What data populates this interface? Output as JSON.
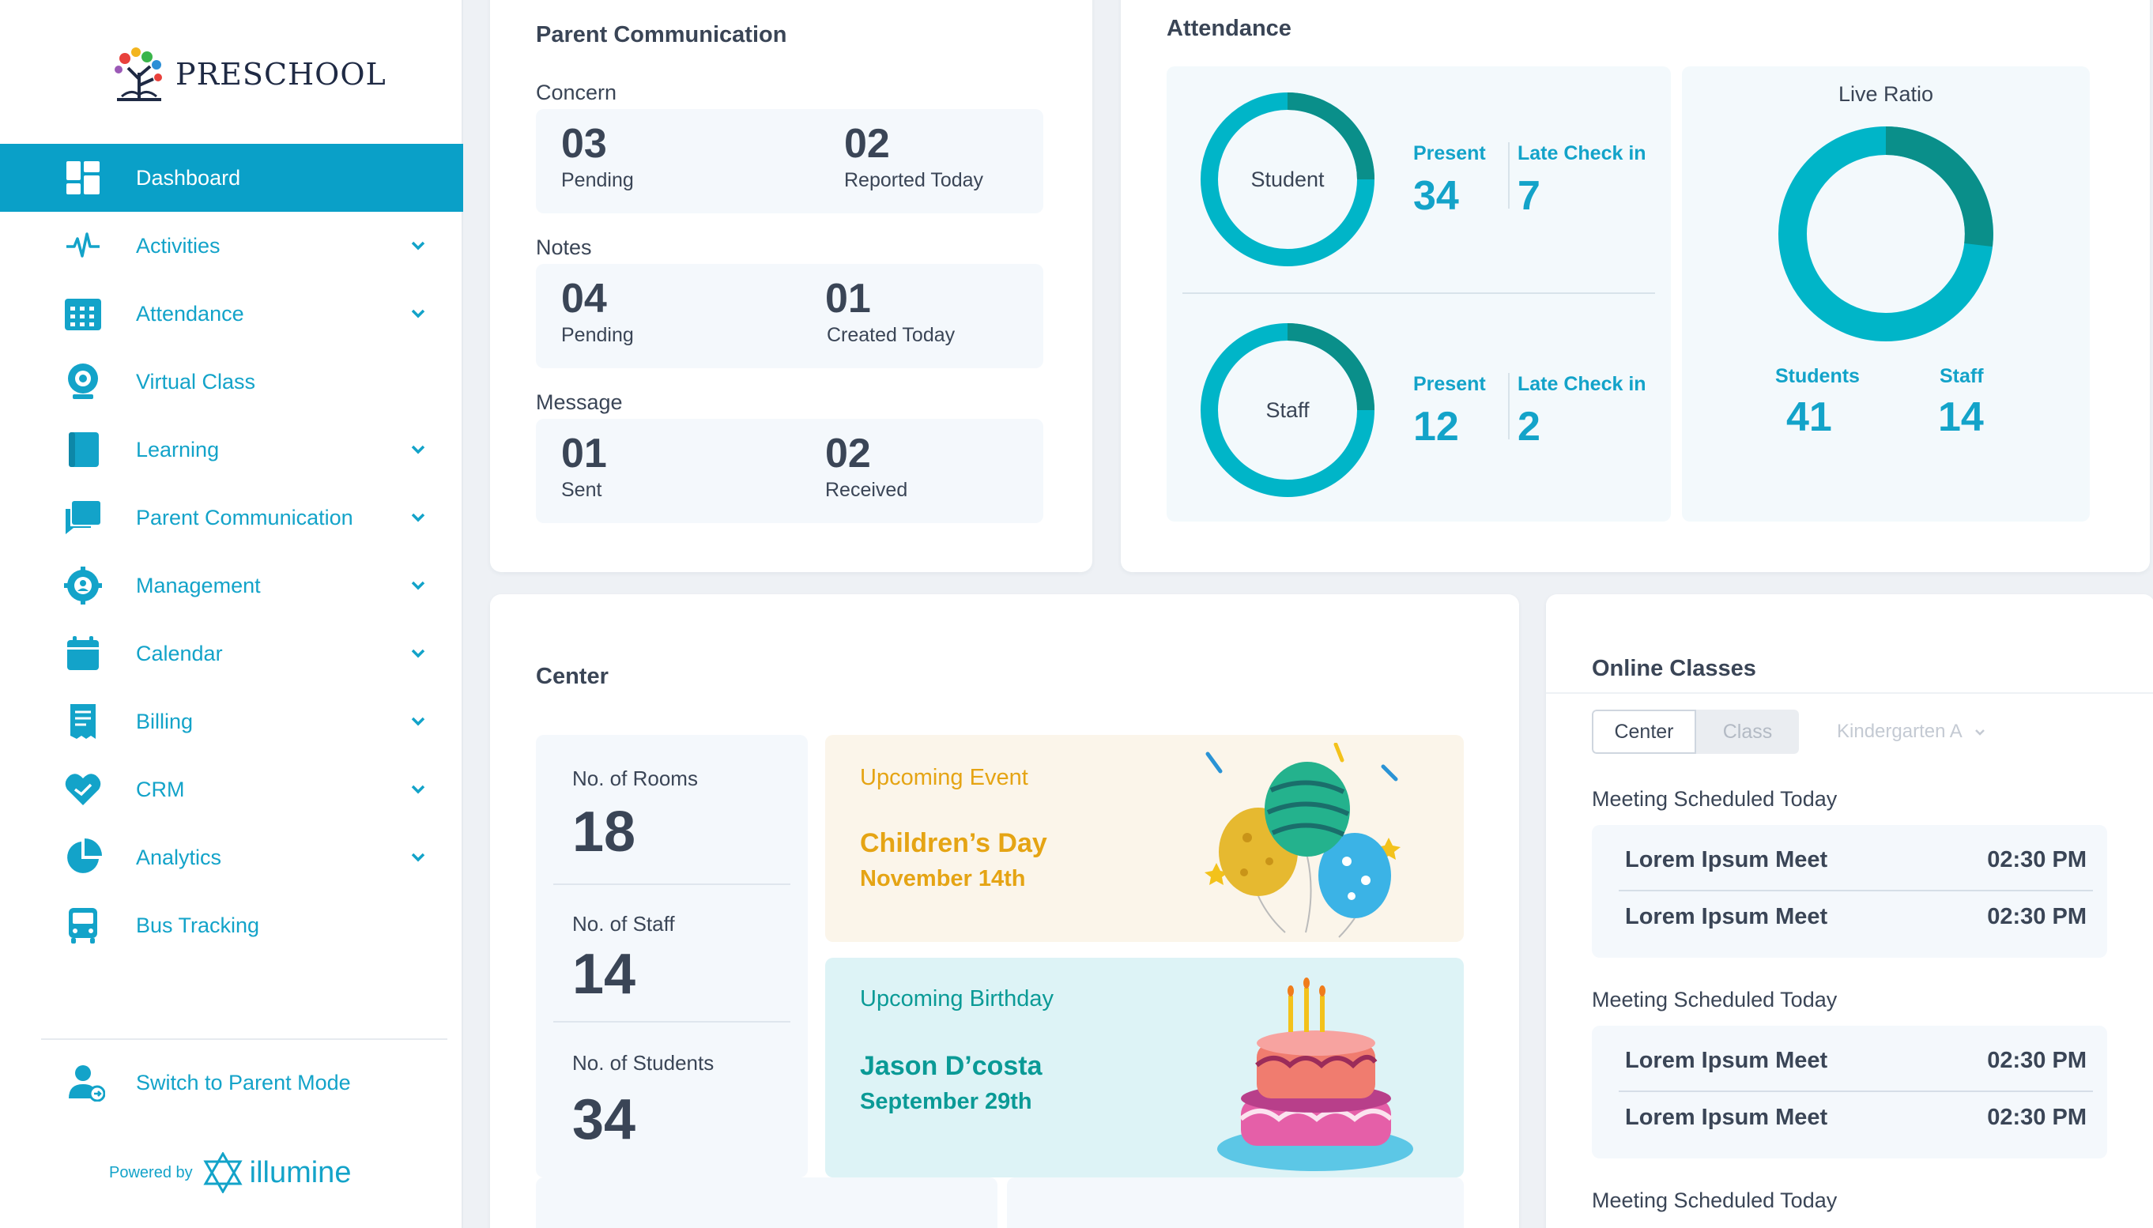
{
  "brand": {
    "name": "PRESCHOOL"
  },
  "sidebar": {
    "items": [
      {
        "label": "Dashboard",
        "icon": "dashboard-icon",
        "active": true,
        "expandable": false
      },
      {
        "label": "Activities",
        "icon": "pulse-icon",
        "expandable": true
      },
      {
        "label": "Attendance",
        "icon": "calendar-grid-icon",
        "expandable": true
      },
      {
        "label": "Virtual Class",
        "icon": "webcam-icon",
        "expandable": false
      },
      {
        "label": "Learning",
        "icon": "book-icon",
        "expandable": true
      },
      {
        "label": "Parent Communication",
        "icon": "chat-icon",
        "expandable": true
      },
      {
        "label": "Management",
        "icon": "gear-user-icon",
        "expandable": true
      },
      {
        "label": "Calendar",
        "icon": "calendar-icon",
        "expandable": true
      },
      {
        "label": "Billing",
        "icon": "receipt-icon",
        "expandable": true
      },
      {
        "label": "CRM",
        "icon": "handshake-icon",
        "expandable": true
      },
      {
        "label": "Analytics",
        "icon": "pie-chart-icon",
        "expandable": true
      },
      {
        "label": "Bus Tracking",
        "icon": "bus-icon",
        "expandable": false
      }
    ],
    "switch_label": "Switch to Parent Mode",
    "powered_by": "Powered by",
    "powered_brand": "illumine"
  },
  "parent_communication": {
    "title": "Parent Communication",
    "sections": [
      {
        "label": "Concern",
        "left_value": "03",
        "left_caption": "Pending",
        "right_value": "02",
        "right_caption": "Reported Today"
      },
      {
        "label": "Notes",
        "left_value": "04",
        "left_caption": "Pending",
        "right_value": "01",
        "right_caption": "Created Today"
      },
      {
        "label": "Message",
        "left_value": "01",
        "left_caption": "Sent",
        "right_value": "02",
        "right_caption": "Received"
      }
    ]
  },
  "attendance": {
    "title": "Attendance",
    "student": {
      "label": "Student",
      "present_label": "Present",
      "present": "34",
      "late_label": "Late Check in",
      "late": "7"
    },
    "staff": {
      "label": "Staff",
      "present_label": "Present",
      "present": "12",
      "late_label": "Late Check in",
      "late": "2"
    },
    "live_ratio": {
      "title": "Live Ratio",
      "students_label": "Students",
      "students": "41",
      "staff_label": "Staff",
      "staff": "14"
    }
  },
  "center": {
    "title": "Center",
    "stats": [
      {
        "label": "No. of Rooms",
        "value": "18"
      },
      {
        "label": "No. of Staff",
        "value": "14"
      },
      {
        "label": "No. of Students",
        "value": "34"
      }
    ],
    "event": {
      "heading": "Upcoming Event",
      "title": "Children’s Day",
      "date": "November 14th"
    },
    "birthday": {
      "heading": "Upcoming Birthday",
      "name": "Jason D’costa",
      "date": "September 29th"
    }
  },
  "online_classes": {
    "title": "Online Classes",
    "tabs": [
      "Center",
      "Class"
    ],
    "selected_tab": "Center",
    "class_filter": "Kindergarten A",
    "sections": [
      {
        "label": "Meeting Scheduled Today",
        "meetings": [
          {
            "name": "Lorem Ipsum Meet",
            "time": "02:30 PM"
          },
          {
            "name": "Lorem Ipsum Meet",
            "time": "02:30 PM"
          }
        ]
      },
      {
        "label": "Meeting Scheduled Today",
        "meetings": [
          {
            "name": "Lorem Ipsum Meet",
            "time": "02:30 PM"
          },
          {
            "name": "Lorem Ipsum Meet",
            "time": "02:30 PM"
          }
        ]
      },
      {
        "label": "Meeting Scheduled Today",
        "meetings": []
      }
    ]
  },
  "colors": {
    "accent": "#0aa0c8",
    "ring": "#00b5c8",
    "ring_dark": "#0a8f8a",
    "event_text": "#e5a414",
    "birthday_text": "#0a9a96"
  }
}
